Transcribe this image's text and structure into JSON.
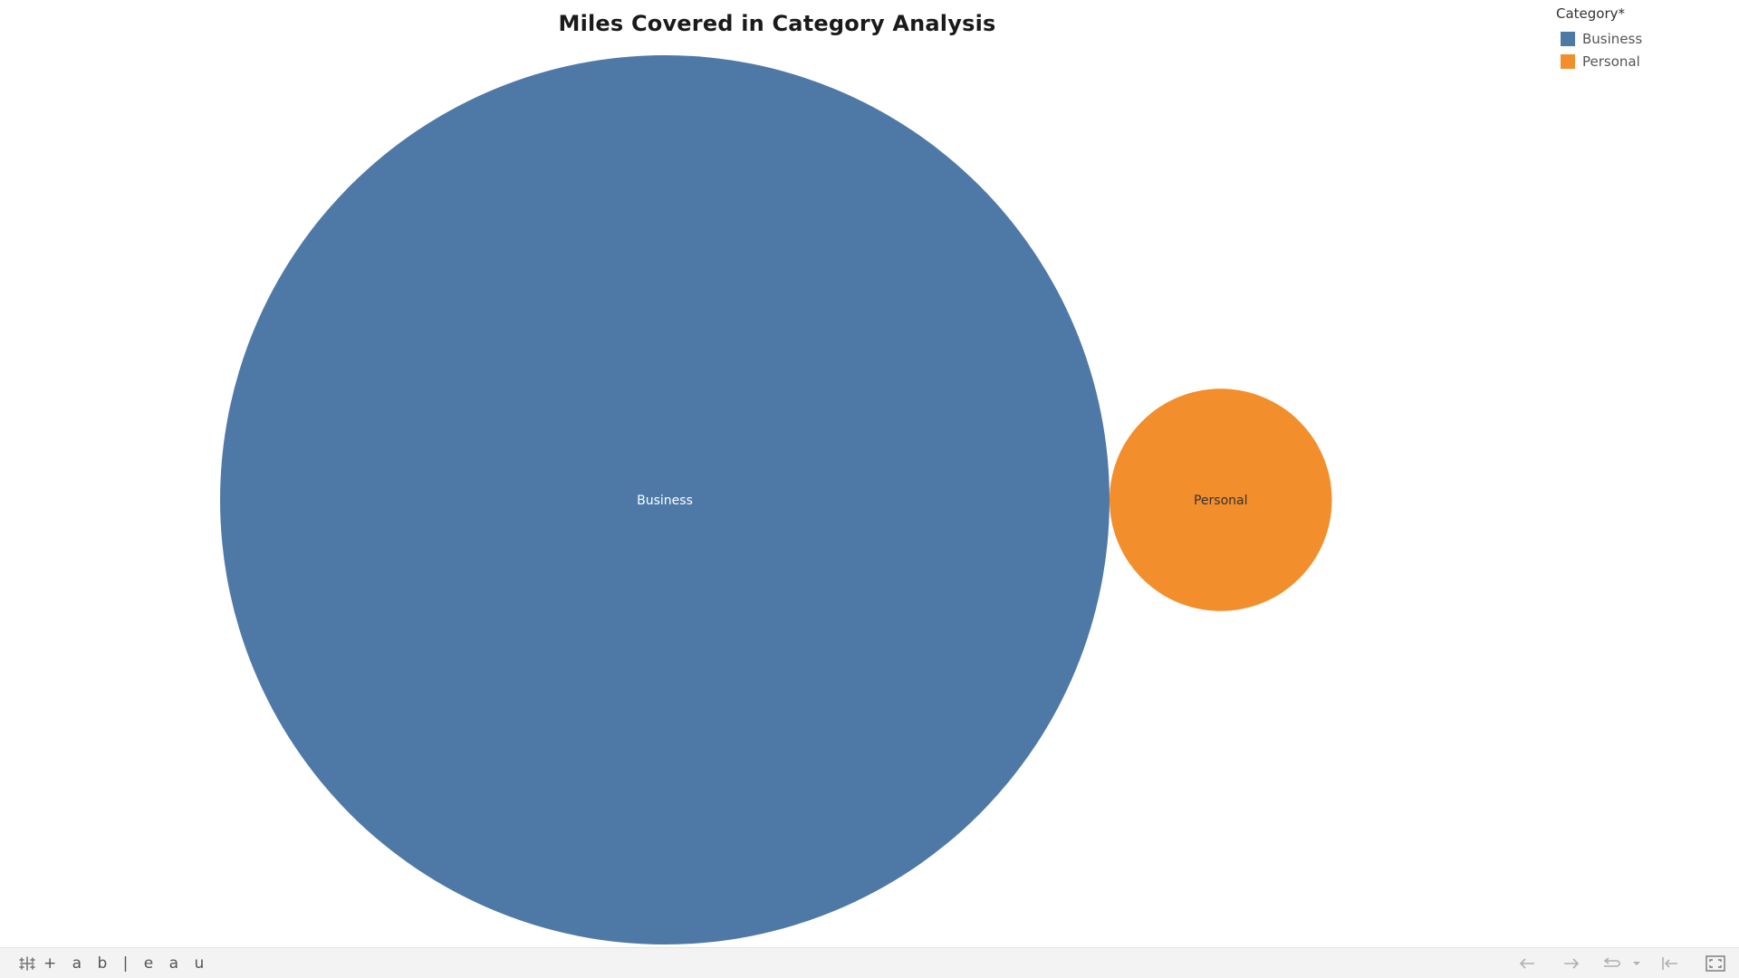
{
  "title": "Miles Covered in Category Analysis",
  "legend": {
    "title": "Category*",
    "items": [
      {
        "label": "Business",
        "color": "#4e79a7"
      },
      {
        "label": "Personal",
        "color": "#f28e2b"
      }
    ]
  },
  "chart_data": {
    "type": "bubble",
    "title": "Miles Covered in Category Analysis",
    "legend_title": "Category*",
    "legend_position": "top-right",
    "measure": "Miles",
    "series": [
      {
        "name": "Business",
        "color": "#4e79a7",
        "label_color": "#ffffff",
        "relative_size": 16.0
      },
      {
        "name": "Personal",
        "color": "#f28e2b",
        "label_color": "#333333",
        "relative_size": 1.0
      }
    ]
  },
  "toolbar": {
    "logo_text": "+ a b | e a u",
    "icons": [
      "undo-icon",
      "redo-icon",
      "revert-icon",
      "revert-dropdown-icon",
      "reset-icon",
      "fullscreen-icon"
    ]
  }
}
